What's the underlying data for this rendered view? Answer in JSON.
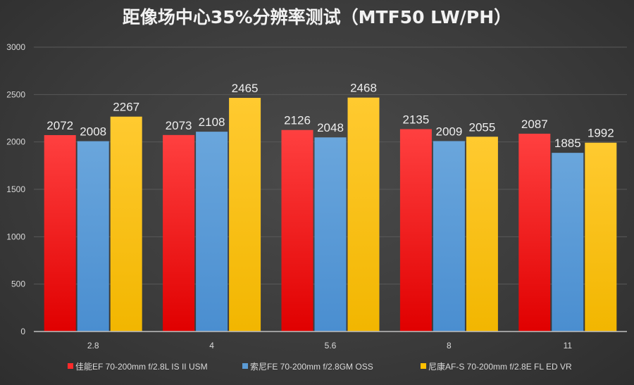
{
  "chart_data": {
    "type": "bar",
    "title": "距像场中心35%分辨率测试（MTF50 LW/PH）",
    "xlabel": "",
    "ylabel": "",
    "categories": [
      "2.8",
      "4",
      "5.6",
      "8",
      "11"
    ],
    "series": [
      {
        "name": "佳能EF 70-200mm f/2.8L IS II USM",
        "color": "#ff2a2a",
        "values": [
          2072,
          2073,
          2126,
          2135,
          2087
        ]
      },
      {
        "name": "索尼FE 70-200mm f/2.8GM OSS",
        "color": "#5b9bd5",
        "values": [
          2008,
          2108,
          2048,
          2009,
          1885
        ]
      },
      {
        "name": "尼康AF-S 70-200mm f/2.8E FL ED VR",
        "color": "#ffc000",
        "values": [
          2267,
          2465,
          2468,
          2055,
          1992
        ]
      }
    ],
    "ylim": [
      0,
      3000
    ],
    "yticks": [
      "0",
      "500",
      "1000",
      "1500",
      "2000",
      "2500",
      "3000"
    ],
    "grid": true,
    "data_labels": true,
    "legend_position": "bottom"
  }
}
